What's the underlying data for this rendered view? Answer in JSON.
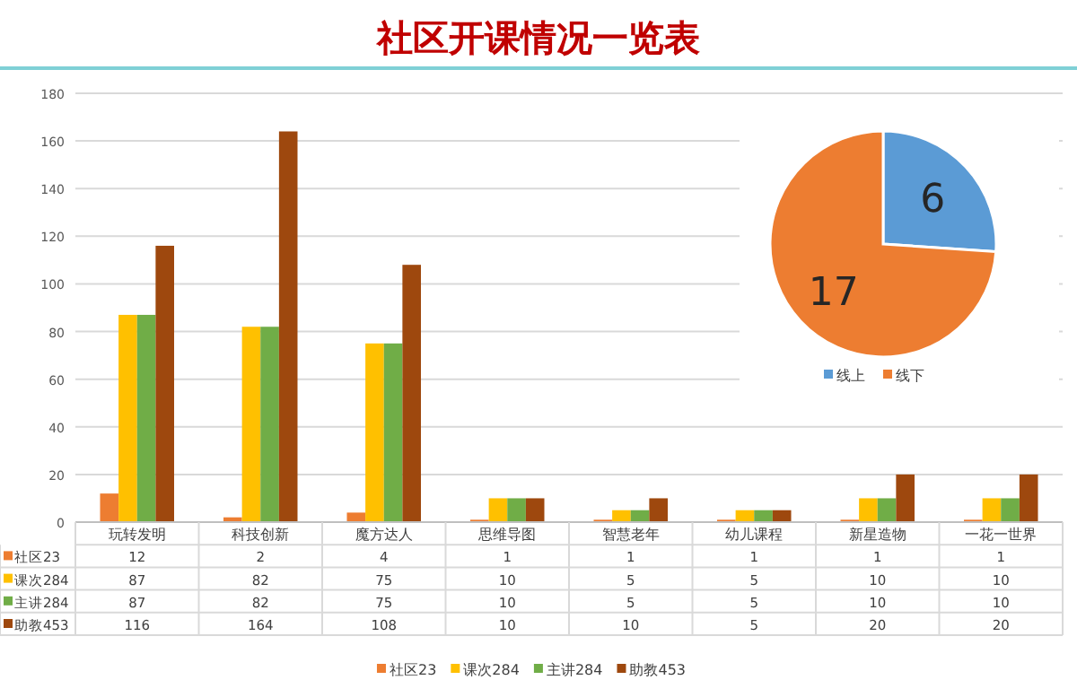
{
  "chart_data": [
    {
      "type": "bar",
      "title": "社区开课情况一览表",
      "categories": [
        "玩转发明",
        "科技创新",
        "魔方达人",
        "思维导图",
        "智慧老年",
        "幼儿课程",
        "新星造物",
        "一花一世界"
      ],
      "series": [
        {
          "name": "社区23",
          "color": "#ed7d31",
          "values": [
            12,
            2,
            4,
            1,
            1,
            1,
            1,
            1
          ]
        },
        {
          "name": "课次284",
          "color": "#ffc000",
          "values": [
            87,
            82,
            75,
            10,
            5,
            5,
            10,
            10
          ]
        },
        {
          "name": "主讲284",
          "color": "#70ad47",
          "values": [
            87,
            82,
            75,
            10,
            5,
            5,
            10,
            10
          ]
        },
        {
          "name": "助教453",
          "color": "#9e480e",
          "values": [
            116,
            164,
            108,
            10,
            10,
            5,
            20,
            20
          ]
        }
      ],
      "ylim": [
        0,
        180
      ],
      "yticks": [
        0,
        20,
        40,
        60,
        80,
        100,
        120,
        140,
        160,
        180
      ],
      "grid": "y",
      "data_labels": true,
      "legend": "bottom"
    },
    {
      "type": "pie",
      "categories": [
        "线上",
        "线下"
      ],
      "values": [
        6,
        17
      ],
      "colors": [
        "#5b9bd5",
        "#ed7d31"
      ],
      "data_labels": true,
      "legend": "bottom"
    }
  ]
}
